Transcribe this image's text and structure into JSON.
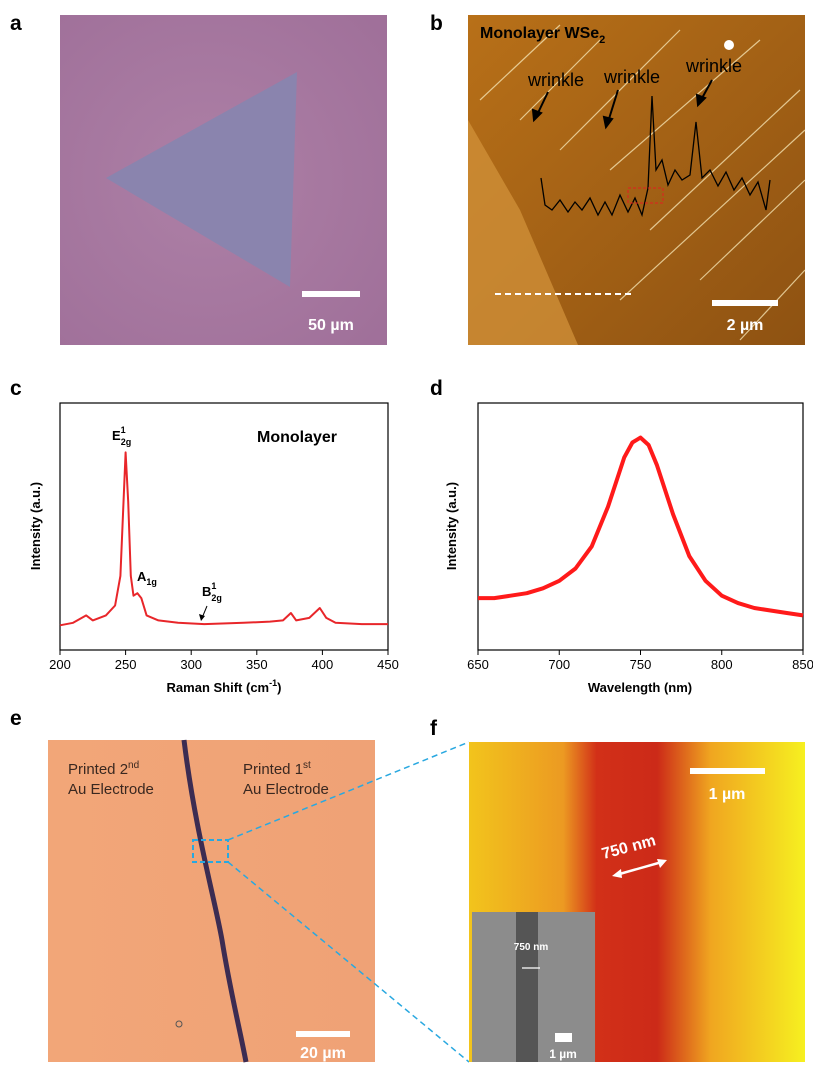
{
  "panels": {
    "a": {
      "label": "a",
      "scale_bar": "50 µm"
    },
    "b": {
      "label": "b",
      "title": "Monolayer WSe",
      "title_sub": "2",
      "annotations": [
        "wrinkle",
        "wrinkle",
        "wrinkle"
      ],
      "scale_bar": "2 µm"
    },
    "c": {
      "label": "c"
    },
    "d": {
      "label": "d"
    },
    "e": {
      "label": "e",
      "left_label": {
        "line1": "Printed 2",
        "sup": "nd",
        "line2": "Au Electrode"
      },
      "right_label": {
        "line1": "Printed 1",
        "sup": "st",
        "line2": "Au Electrode"
      },
      "scale_bar": "20 µm"
    },
    "f": {
      "label": "f",
      "scale_bar": "1 µm",
      "width_label": "750 nm",
      "inset": {
        "width_label": "750 nm",
        "scale_bar": "1 µm"
      }
    }
  },
  "chart_data": [
    {
      "type": "line",
      "title": "Monolayer",
      "x": [
        200,
        210,
        220,
        225,
        235,
        242,
        246,
        248,
        250,
        252,
        254,
        256,
        259,
        262,
        266,
        275,
        290,
        310,
        340,
        360,
        370,
        376,
        380,
        390,
        398,
        403,
        410,
        430,
        450
      ],
      "values": [
        10,
        11,
        14,
        12,
        14,
        18,
        30,
        55,
        80,
        60,
        30,
        22,
        23,
        21,
        14,
        12,
        11,
        10.5,
        11,
        11.5,
        12,
        15,
        12,
        13,
        17,
        13,
        11,
        10.5,
        10.5
      ],
      "color": "#e8262a",
      "xlim": [
        200,
        450
      ],
      "xticks": [
        200,
        250,
        300,
        350,
        400,
        450
      ],
      "ylim": [
        0,
        100
      ],
      "xlabel": "Raman Shift (cm",
      "xlabel_sup": "-1",
      "xlabel_end": ")",
      "ylabel": "Intensity (a.u.)",
      "annotations": [
        {
          "text": "E",
          "sup": "1",
          "sub": "2g"
        },
        {
          "text": "A",
          "sub": "1g"
        },
        {
          "text": "B",
          "sup": "1",
          "sub": "2g"
        }
      ]
    },
    {
      "type": "line",
      "x": [
        650,
        660,
        670,
        680,
        690,
        700,
        710,
        720,
        730,
        740,
        745,
        750,
        755,
        760,
        770,
        780,
        790,
        800,
        810,
        820,
        830,
        840,
        850
      ],
      "values": [
        21,
        21,
        22,
        23,
        25,
        28,
        33,
        42,
        58,
        78,
        84,
        86,
        83,
        75,
        55,
        38,
        28,
        22,
        19,
        17,
        16,
        15,
        14
      ],
      "color": "#ff1a1a",
      "xlim": [
        650,
        850
      ],
      "xticks": [
        650,
        700,
        750,
        800,
        850
      ],
      "ylim": [
        0,
        100
      ],
      "xlabel": "Wavelength (nm)",
      "ylabel": "Intensity (a.u.)"
    }
  ]
}
